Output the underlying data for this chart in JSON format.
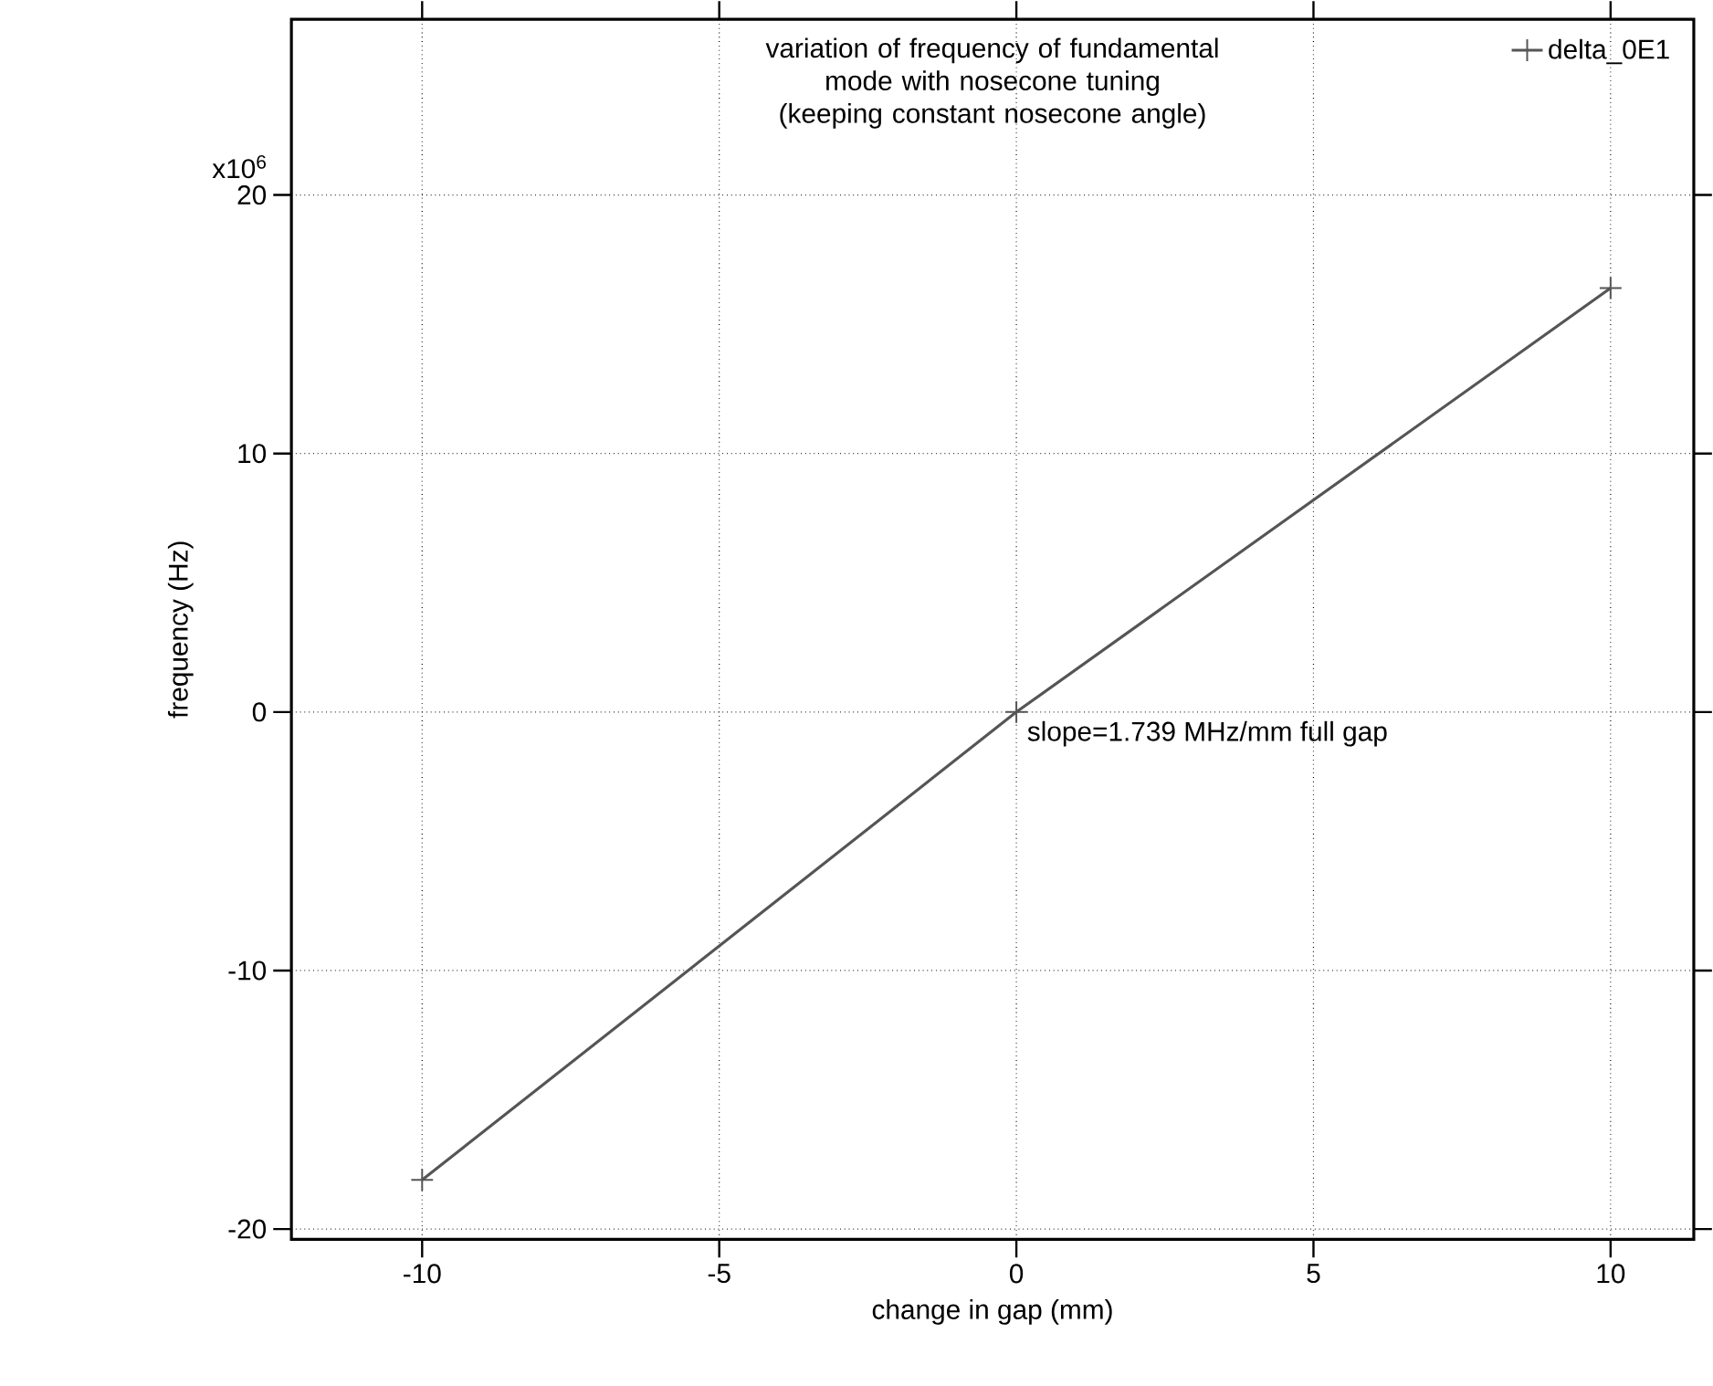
{
  "chart_data": {
    "type": "line",
    "title": "variation of frequency of fundamental mode with nosecone tuning (keeping constant nosecone angle)",
    "xlabel": "change in gap (mm)",
    "ylabel": "frequency (Hz)",
    "x": [
      -10,
      0,
      10
    ],
    "series": [
      {
        "name": "delta_0E1",
        "color": "#555555",
        "values": [
          -18.1,
          0,
          16.4
        ]
      }
    ],
    "xlim": [
      -12.2,
      11.4
    ],
    "ylim": [
      -20.4,
      26.8
    ],
    "xticks": [
      -10,
      -5,
      0,
      5,
      10
    ],
    "yticks": [
      -20,
      -10,
      0,
      10,
      20
    ],
    "grid": true,
    "legend": "top right",
    "marker": "cross",
    "line_style": "solid",
    "annotations": [
      "x10$^{6}$",
      "slope=1.739 MHz/mm full gap"
    ]
  }
}
